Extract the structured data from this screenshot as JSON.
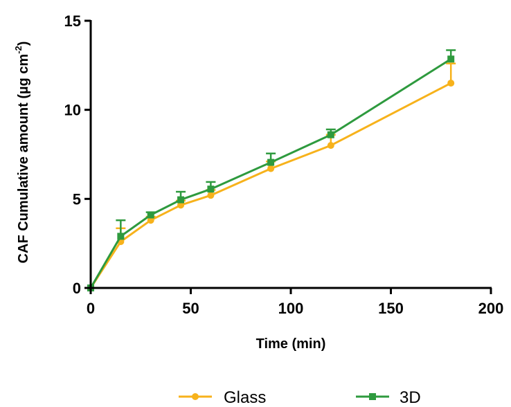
{
  "chart_data": {
    "type": "line",
    "xlabel": "Time (min)",
    "ylabel_main": "CAF Cumulative amount (µg cm",
    "ylabel_sup": "-2",
    "ylabel_close": ")",
    "xlim": [
      0,
      200
    ],
    "ylim": [
      0,
      15
    ],
    "xticks": [
      0,
      50,
      100,
      150,
      200
    ],
    "yticks": [
      0,
      5,
      10,
      15
    ],
    "grid": false,
    "legend_position": "bottom",
    "series": [
      {
        "name": "Glass",
        "color": "#f7b21b",
        "marker": "circle",
        "x": [
          0,
          15,
          30,
          45,
          60,
          90,
          120,
          180
        ],
        "y": [
          0,
          2.6,
          3.8,
          4.65,
          5.2,
          6.7,
          8.0,
          11.5
        ],
        "error": [
          0,
          0.75,
          0.2,
          0.25,
          0.3,
          0.4,
          0.6,
          1.1
        ]
      },
      {
        "name": "3D",
        "color": "#2e9a3e",
        "marker": "square",
        "x": [
          0,
          15,
          30,
          45,
          60,
          90,
          120,
          180
        ],
        "y": [
          0,
          2.9,
          4.1,
          4.95,
          5.55,
          7.05,
          8.6,
          12.85
        ],
        "error": [
          0,
          0.9,
          0.15,
          0.45,
          0.4,
          0.5,
          0.3,
          0.5
        ]
      }
    ]
  }
}
